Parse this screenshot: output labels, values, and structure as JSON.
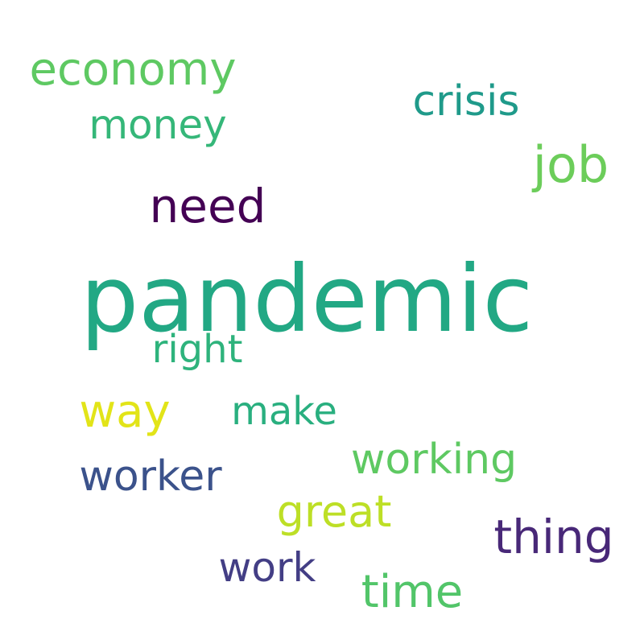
{
  "words": [
    {
      "text": "pandemic",
      "color": "#22a884"
    },
    {
      "text": "economy",
      "color": "#5ec962"
    },
    {
      "text": "crisis",
      "color": "#1f9a8a"
    },
    {
      "text": "money",
      "color": "#35b779"
    },
    {
      "text": "job",
      "color": "#6ccd5a"
    },
    {
      "text": "need",
      "color": "#440154"
    },
    {
      "text": "right",
      "color": "#2eb37c"
    },
    {
      "text": "way",
      "color": "#e2e418"
    },
    {
      "text": "make",
      "color": "#29af7f"
    },
    {
      "text": "working",
      "color": "#5ec962"
    },
    {
      "text": "worker",
      "color": "#3b528b"
    },
    {
      "text": "great",
      "color": "#bddf26"
    },
    {
      "text": "thing",
      "color": "#482878"
    },
    {
      "text": "work",
      "color": "#433e85"
    },
    {
      "text": "time",
      "color": "#52c569"
    }
  ]
}
